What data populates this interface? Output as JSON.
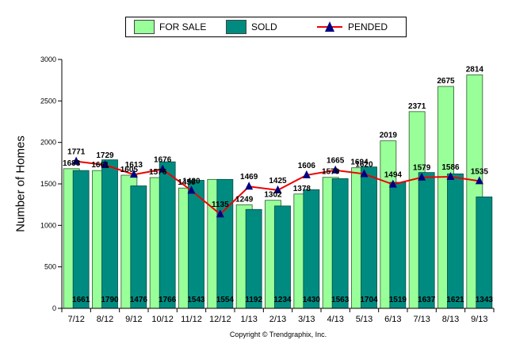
{
  "legend": {
    "for_sale": "FOR SALE",
    "sold": "SOLD",
    "pended": "PENDED"
  },
  "ylabel": "Number of Homes",
  "copyright": "Copyright © Trendgraphix, Inc.",
  "colors": {
    "for_sale": "#99ff99",
    "sold": "#008b80",
    "pended_line": "#ee0000",
    "pended_marker": "#000080"
  },
  "chart_data": {
    "type": "bar",
    "categories": [
      "7/12",
      "8/12",
      "9/12",
      "10/12",
      "11/12",
      "12/12",
      "1/13",
      "2/13",
      "3/13",
      "4/13",
      "5/13",
      "6/13",
      "7/13",
      "8/13",
      "9/13"
    ],
    "series": [
      {
        "name": "FOR SALE",
        "type": "bar",
        "values": [
          1683,
          1661,
          1605,
          1576,
          1450,
          1554,
          1249,
          1302,
          1378,
          1579,
          1694,
          2019,
          2371,
          2675,
          2814
        ],
        "labels": [
          "1683",
          "1661",
          "1605",
          "1576",
          "1450",
          "",
          "1249",
          "1302",
          "1378",
          "1579",
          "1694",
          "2019",
          "2371",
          "2675",
          "2814"
        ]
      },
      {
        "name": "SOLD",
        "type": "bar",
        "values": [
          1661,
          1790,
          1476,
          1766,
          1543,
          1554,
          1192,
          1234,
          1430,
          1563,
          1704,
          1519,
          1637,
          1621,
          1343
        ],
        "labels": [
          "1661",
          "1790",
          "1476",
          "1766",
          "1543",
          "1554",
          "1192",
          "1234",
          "1430",
          "1563",
          "1704",
          "1519",
          "1637",
          "1621",
          "1343"
        ]
      },
      {
        "name": "PENDED",
        "type": "line",
        "values": [
          1771,
          1729,
          1613,
          1676,
          1420,
          1135,
          1469,
          1425,
          1606,
          1665,
          1620,
          1494,
          1579,
          1586,
          1535
        ],
        "labels": [
          "1771",
          "1729",
          "1613",
          "1676",
          "1420",
          "1135",
          "1469",
          "1425",
          "1606",
          "1665",
          "1620",
          "1494",
          "1579",
          "1586",
          "1535"
        ]
      }
    ],
    "yticks": [
      "0",
      "500",
      "1000",
      "1500",
      "2000",
      "2500",
      "3000"
    ],
    "ylim": [
      0,
      3000
    ],
    "ylabel": "Number of Homes",
    "xlabel": "",
    "grid": false,
    "legend_position": "top"
  }
}
